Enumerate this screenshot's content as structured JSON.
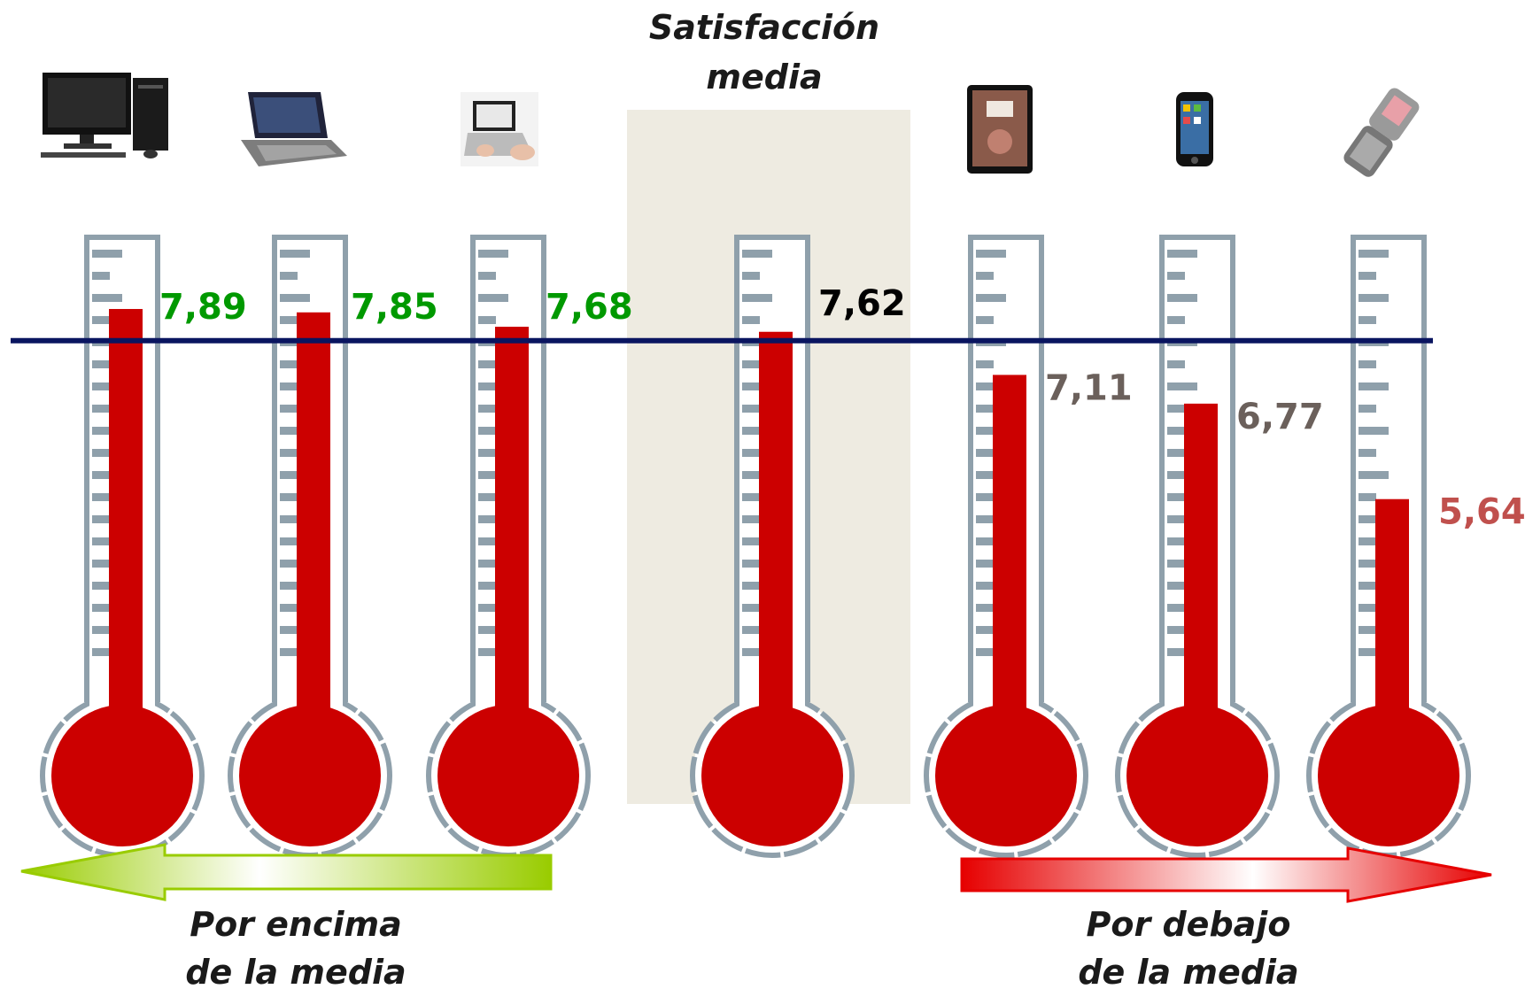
{
  "chart_data": {
    "type": "thermometer",
    "title": [
      "Satisfacción",
      "media"
    ],
    "reference": {
      "value": 7.62,
      "label": "7,62",
      "color": "#000000"
    },
    "ylim": [
      0,
      10
    ],
    "series": [
      {
        "icon": "desktop-computer-icon",
        "value": 7.89,
        "label": "7,89",
        "label_color": "#009900"
      },
      {
        "icon": "laptop-icon",
        "value": 7.85,
        "label": "7,85",
        "label_color": "#009900"
      },
      {
        "icon": "netbook-icon",
        "value": 7.68,
        "label": "7,68",
        "label_color": "#009900"
      },
      {
        "icon": "thermometer-average",
        "value": 7.62,
        "label": "7,62",
        "label_color": "#000000"
      },
      {
        "icon": "tablet-icon",
        "value": 7.11,
        "label": "7,11",
        "label_color": "#6b605b"
      },
      {
        "icon": "smartphone-icon",
        "value": 6.77,
        "label": "6,77",
        "label_color": "#6b605b"
      },
      {
        "icon": "flip-phone-icon",
        "value": 5.64,
        "label": "5,64",
        "label_color": "#c0504d"
      }
    ],
    "annotations": {
      "above": [
        "Por encima",
        "de la media"
      ],
      "below": [
        "Por debajo",
        "de la media"
      ]
    }
  },
  "colors": {
    "mercury": "#cc0000",
    "glass": "#8fa0ab",
    "reference_line": "#0a1560",
    "highlight_band": "#eeebe1",
    "arrow_above": "#99cc00",
    "arrow_below": "#e60000"
  }
}
